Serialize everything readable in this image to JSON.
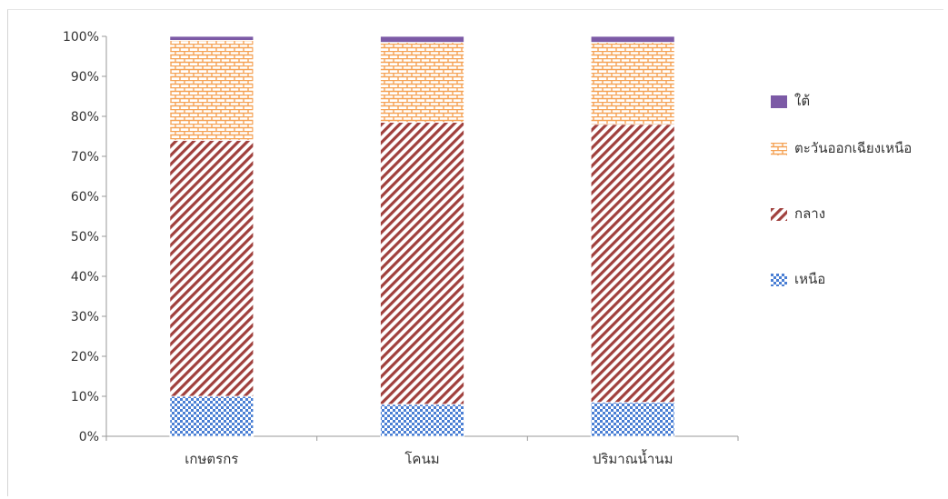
{
  "chart_data": {
    "type": "bar",
    "stacked": true,
    "normalized_percent": true,
    "categories": [
      "เกษตรกร",
      "โคนม",
      "ปริมาณน้ำนม"
    ],
    "series": [
      {
        "name": "เหนือ",
        "values": [
          10,
          8,
          8.5
        ],
        "color": "#4a7fd4",
        "pattern": "checker"
      },
      {
        "name": "กลาง",
        "values": [
          64,
          70.5,
          69.5
        ],
        "color": "#a0403d",
        "pattern": "diagonal-stripes"
      },
      {
        "name": "ตะวันออกเฉียงเหนือ",
        "values": [
          25,
          20,
          20.5
        ],
        "color": "#f5a255",
        "pattern": "brick"
      },
      {
        "name": "ใต้",
        "values": [
          1,
          1.5,
          1.5
        ],
        "color": "#7c5aa6",
        "pattern": "solid"
      }
    ],
    "y_ticks": [
      "0%",
      "10%",
      "20%",
      "30%",
      "40%",
      "50%",
      "60%",
      "70%",
      "80%",
      "90%",
      "100%"
    ],
    "ylim": [
      0,
      100
    ],
    "legend_order": [
      "ใต้",
      "ตะวันออกเฉียงเหนือ",
      "กลาง",
      "เหนือ"
    ],
    "legend_position": "right",
    "grid": false
  }
}
